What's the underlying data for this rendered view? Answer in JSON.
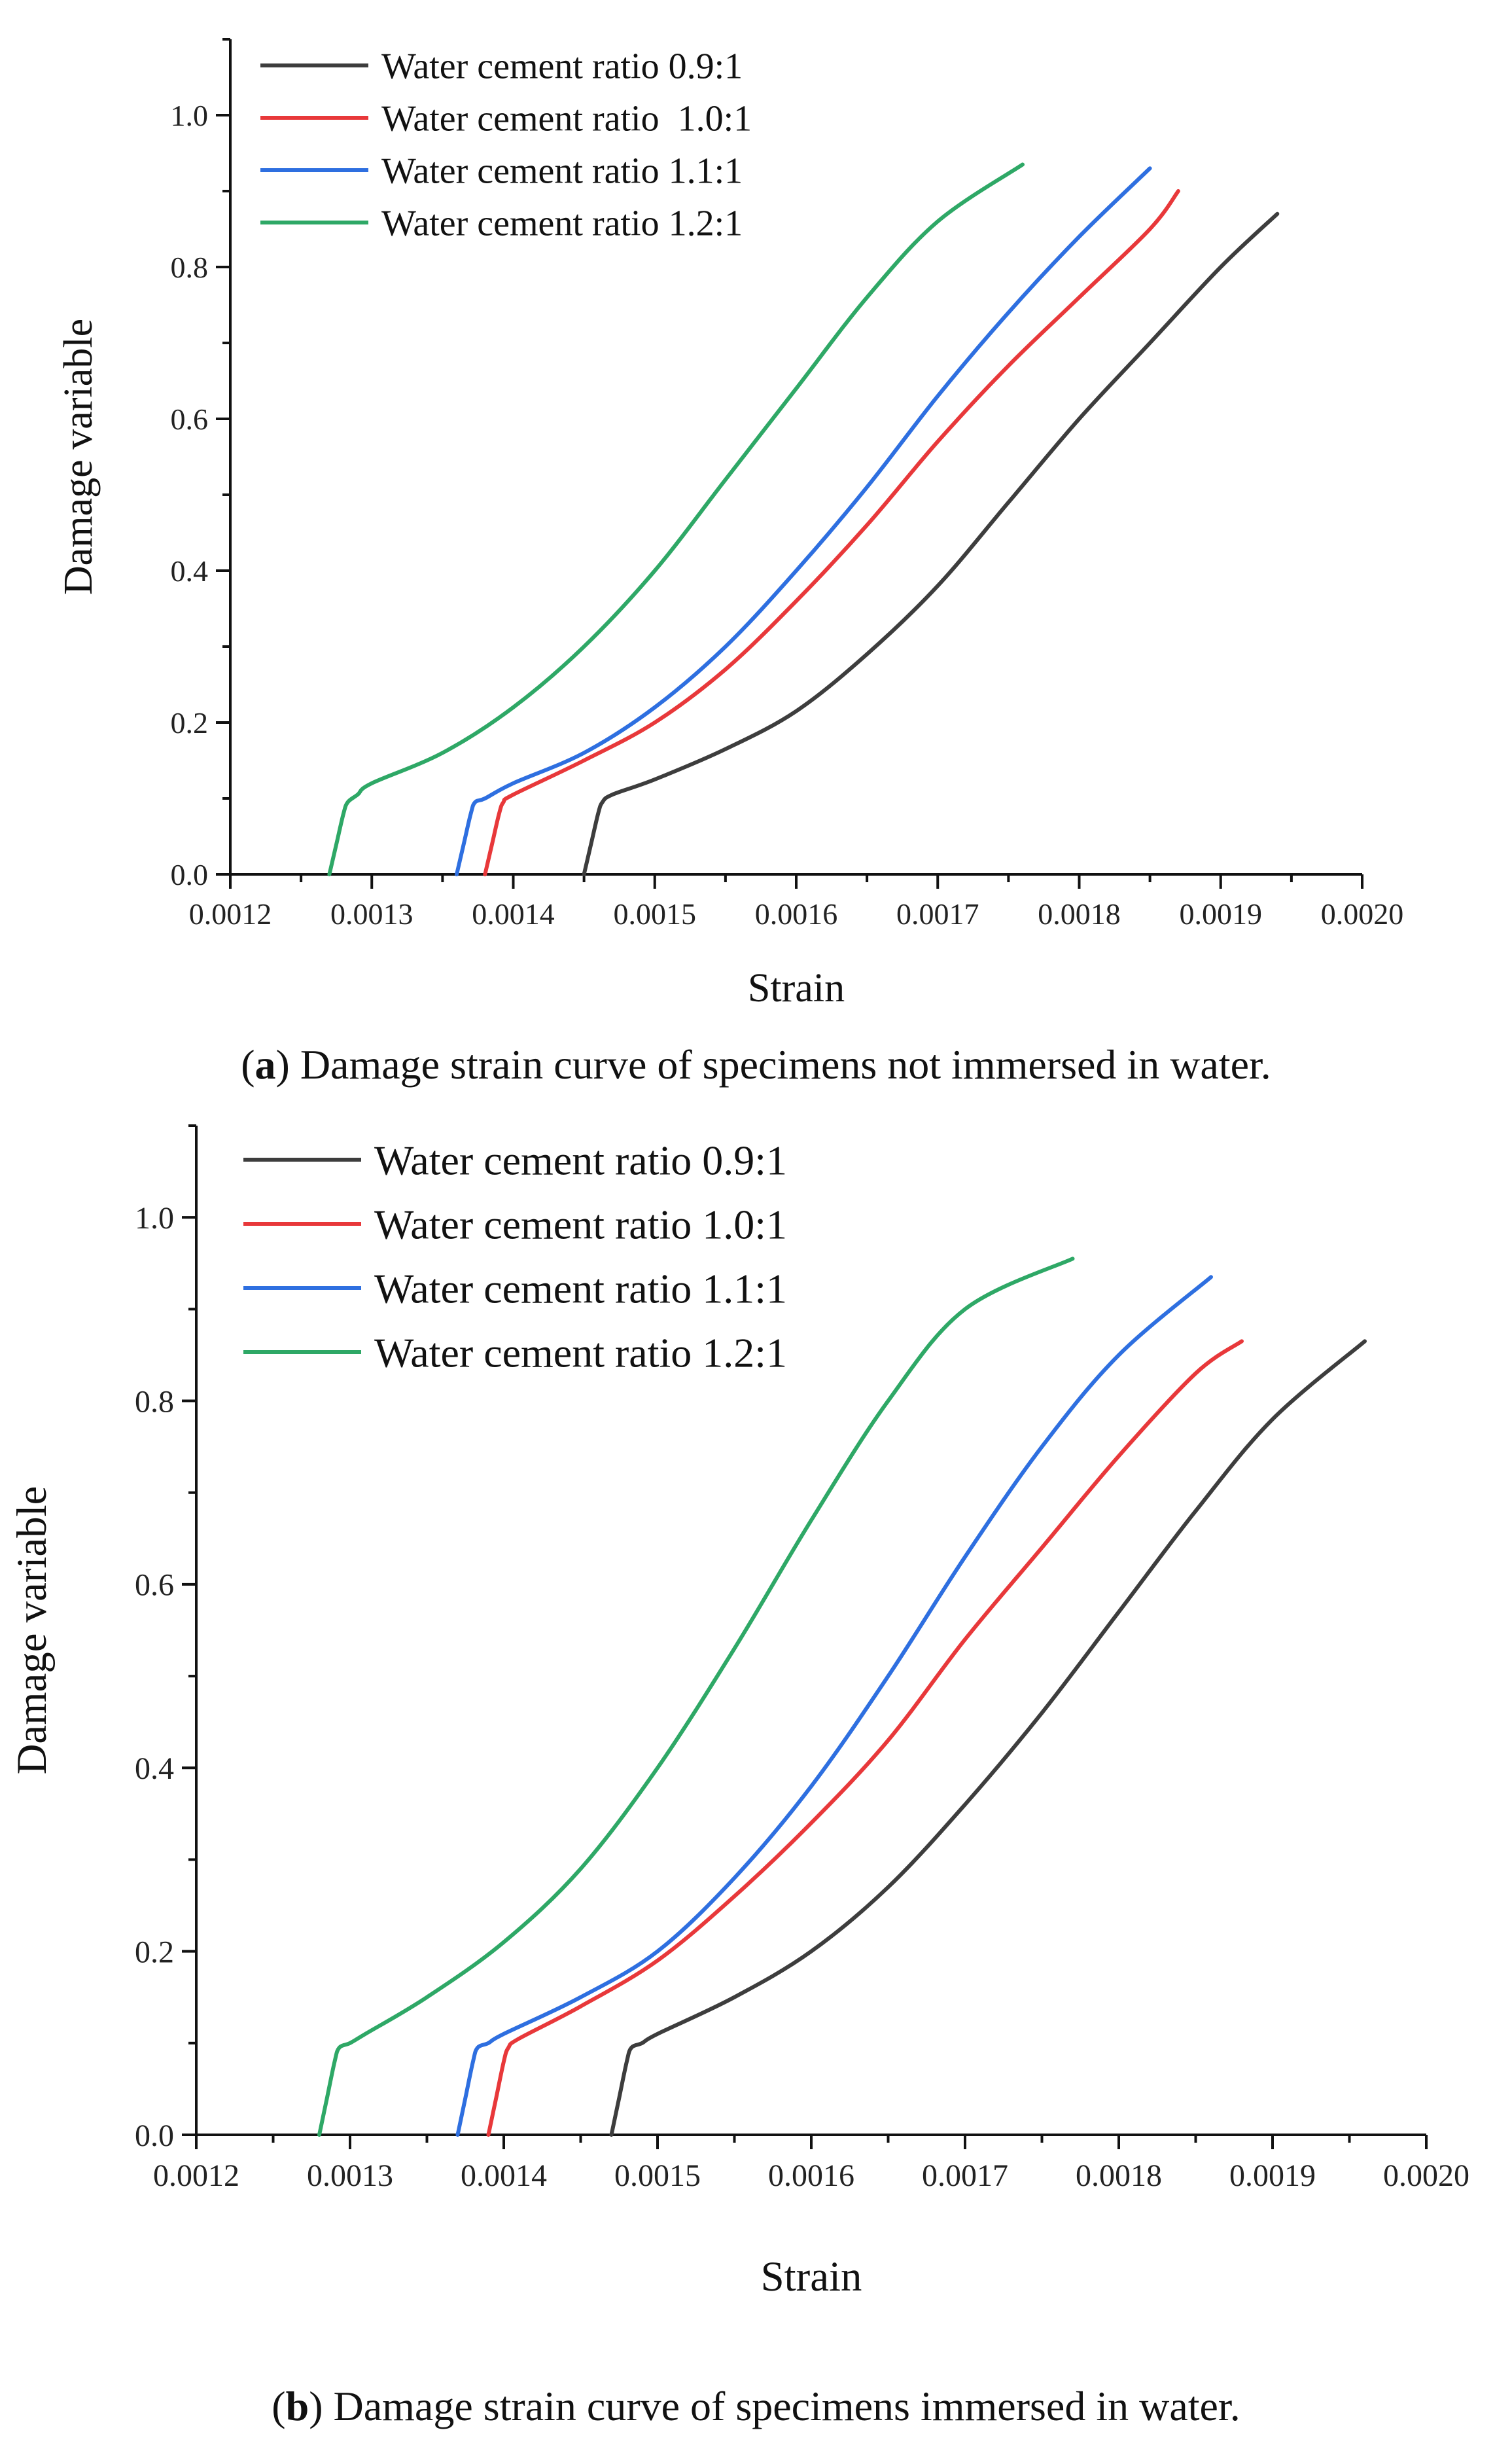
{
  "chart_data": [
    {
      "type": "line",
      "caption_letter": "a",
      "caption_text": "Damage strain curve of specimens not immersed in water.",
      "xlabel": "Strain",
      "ylabel": "Damage variable",
      "xlim": [
        0.0012,
        0.002
      ],
      "ylim": [
        0,
        1.1
      ],
      "x_ticks": [
        "0.0012",
        "0.0013",
        "0.0014",
        "0.0015",
        "0.0016",
        "0.0017",
        "0.0018",
        "0.0019",
        "0.0020"
      ],
      "y_ticks": [
        "0.0",
        "0.2",
        "0.4",
        "0.6",
        "0.8",
        "1.0"
      ],
      "legend_position": "top-left",
      "series": [
        {
          "name": "Water cement ratio 0.9:1",
          "color": "#3d3d3d",
          "x": [
            0.00145,
            0.001455,
            0.00146,
            0.001463,
            0.00147,
            0.0015,
            0.00155,
            0.0016,
            0.00165,
            0.0017,
            0.00175,
            0.0018,
            0.00185,
            0.0019,
            0.00194
          ],
          "y": [
            0.0,
            0.04,
            0.08,
            0.095,
            0.105,
            0.125,
            0.165,
            0.215,
            0.29,
            0.38,
            0.49,
            0.6,
            0.7,
            0.8,
            0.87
          ]
        },
        {
          "name": "Water cement ratio  1.0:1",
          "color": "#e8383a",
          "x": [
            0.00138,
            0.001385,
            0.00139,
            0.001393,
            0.0014,
            0.00145,
            0.0015,
            0.00155,
            0.0016,
            0.00165,
            0.0017,
            0.00175,
            0.0018,
            0.00185,
            0.00187
          ],
          "y": [
            0.0,
            0.04,
            0.08,
            0.095,
            0.105,
            0.15,
            0.2,
            0.27,
            0.36,
            0.46,
            0.57,
            0.67,
            0.76,
            0.85,
            0.9
          ]
        },
        {
          "name": "Water cement ratio 1.1:1",
          "color": "#2e6fe0",
          "x": [
            0.00136,
            0.001365,
            0.00137,
            0.001373,
            0.00138,
            0.0014,
            0.00145,
            0.0015,
            0.00155,
            0.0016,
            0.00165,
            0.0017,
            0.00175,
            0.0018,
            0.00185
          ],
          "y": [
            0.0,
            0.04,
            0.08,
            0.095,
            0.1,
            0.12,
            0.16,
            0.22,
            0.3,
            0.4,
            0.51,
            0.63,
            0.74,
            0.84,
            0.93
          ]
        },
        {
          "name": "Water cement ratio 1.2:1",
          "color": "#2ea866",
          "x": [
            0.00127,
            0.001275,
            0.00128,
            0.001283,
            0.00129,
            0.0013,
            0.00135,
            0.0014,
            0.00145,
            0.0015,
            0.00155,
            0.0016,
            0.00165,
            0.0017,
            0.00176
          ],
          "y": [
            0.0,
            0.04,
            0.08,
            0.095,
            0.105,
            0.12,
            0.16,
            0.22,
            0.3,
            0.4,
            0.52,
            0.64,
            0.76,
            0.86,
            0.935
          ]
        }
      ]
    },
    {
      "type": "line",
      "caption_letter": "b",
      "caption_text": "Damage strain curve of specimens immersed in water.",
      "xlabel": "Strain",
      "ylabel": "Damage variable",
      "xlim": [
        0.0012,
        0.002
      ],
      "ylim": [
        0,
        1.1
      ],
      "x_ticks": [
        "0.0012",
        "0.0013",
        "0.0014",
        "0.0015",
        "0.0016",
        "0.0017",
        "0.0018",
        "0.0019",
        "0.0020"
      ],
      "y_ticks": [
        "0.0",
        "0.2",
        "0.4",
        "0.6",
        "0.8",
        "1.0"
      ],
      "legend_position": "top-left",
      "series": [
        {
          "name": "Water cement ratio 0.9:1",
          "color": "#3d3d3d",
          "x": [
            0.00147,
            0.001475,
            0.00148,
            0.001483,
            0.00149,
            0.0015,
            0.00155,
            0.0016,
            0.00165,
            0.0017,
            0.00175,
            0.0018,
            0.00185,
            0.0019,
            0.00196
          ],
          "y": [
            0.0,
            0.04,
            0.08,
            0.095,
            0.1,
            0.11,
            0.15,
            0.2,
            0.27,
            0.36,
            0.46,
            0.57,
            0.68,
            0.78,
            0.865
          ]
        },
        {
          "name": "Water cement ratio 1.0:1",
          "color": "#e8383a",
          "x": [
            0.00139,
            0.001395,
            0.0014,
            0.001403,
            0.00141,
            0.00145,
            0.0015,
            0.00155,
            0.0016,
            0.00165,
            0.0017,
            0.00175,
            0.0018,
            0.00185,
            0.00188
          ],
          "y": [
            0.0,
            0.04,
            0.08,
            0.095,
            0.105,
            0.14,
            0.19,
            0.26,
            0.34,
            0.43,
            0.54,
            0.64,
            0.74,
            0.83,
            0.865
          ]
        },
        {
          "name": "Water cement ratio 1.1:1",
          "color": "#2e6fe0",
          "x": [
            0.00137,
            0.001375,
            0.00138,
            0.001383,
            0.00139,
            0.0014,
            0.00145,
            0.0015,
            0.00155,
            0.0016,
            0.00165,
            0.0017,
            0.00175,
            0.0018,
            0.00186
          ],
          "y": [
            0.0,
            0.04,
            0.08,
            0.095,
            0.1,
            0.11,
            0.15,
            0.2,
            0.28,
            0.38,
            0.5,
            0.63,
            0.75,
            0.85,
            0.935
          ]
        },
        {
          "name": "Water cement ratio 1.2:1",
          "color": "#2ea866",
          "x": [
            0.00128,
            0.001285,
            0.00129,
            0.001293,
            0.0013,
            0.00131,
            0.00135,
            0.0014,
            0.00145,
            0.0015,
            0.00155,
            0.0016,
            0.00165,
            0.0017,
            0.00177
          ],
          "y": [
            0.0,
            0.04,
            0.08,
            0.095,
            0.1,
            0.11,
            0.15,
            0.21,
            0.29,
            0.4,
            0.53,
            0.67,
            0.8,
            0.9,
            0.955
          ]
        }
      ]
    }
  ]
}
